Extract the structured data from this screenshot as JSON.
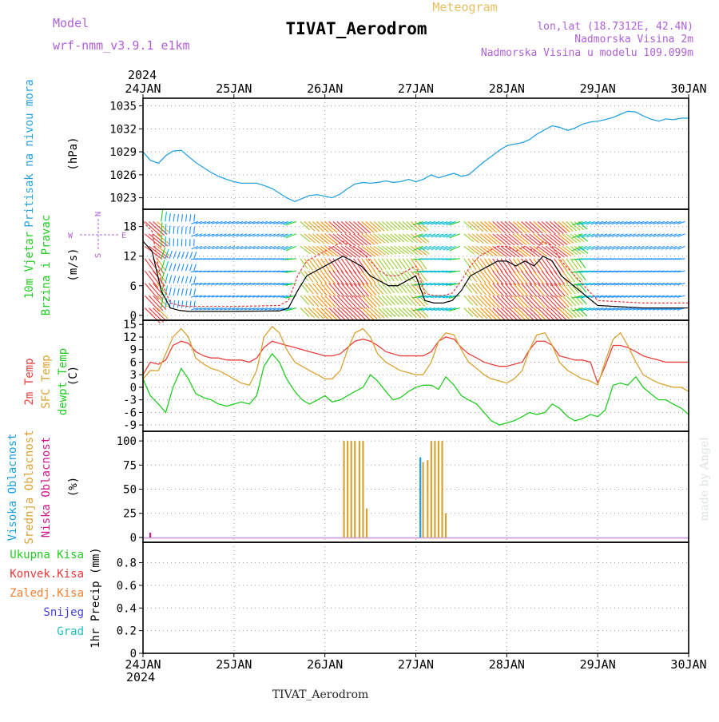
{
  "header": {
    "model_label": "Model",
    "model_name": "wrf-nmm_v3.9.1  e1km",
    "meteogram_label": "Meteogram",
    "station_title": "TIVAT_Aerodrom",
    "lonlat": "lon,lat (18.7312E, 42.4N)",
    "altitude": "Nadmorska Visina 2m",
    "model_altitude": "Nadmorska Visina u modelu 109.099m",
    "footer_station": "TIVAT_Aerodrom",
    "watermark": "made by Angel",
    "year_top": "2024",
    "year_bottom": "2024"
  },
  "colors": {
    "pressure": "#29a3e0",
    "temp2m": "#e8403c",
    "sfc_temp": "#daa233",
    "dewpoint": "#22cc22",
    "cloud_high": "#1aa0e0",
    "cloud_mid": "#daa233",
    "cloud_low": "#d01890",
    "model_text": "#b060d8",
    "meteogram_text": "#e8c060",
    "rain_total": "#22cc22",
    "rain_conv": "#e83838",
    "rain_freezing": "#f08030",
    "snow": "#4040e0",
    "hail": "#20c0c0",
    "wind_speed": "#000000",
    "wind_gust": "#e83838"
  },
  "chart_data": [
    {
      "type": "line",
      "id": "pressure",
      "ylabel": "(hPa)",
      "side_labels": [
        "Pritisak na nivou mora"
      ],
      "yticks": [
        1023,
        1026,
        1029,
        1032,
        1035
      ],
      "ylim": [
        1021.5,
        1036
      ],
      "x_days": [
        "24JAN",
        "25JAN",
        "26JAN",
        "27JAN",
        "28JAN",
        "29JAN",
        "30JAN"
      ],
      "series": [
        {
          "key": "pressure",
          "x": [
            0,
            0.08,
            0.17,
            0.25,
            0.33,
            0.42,
            0.5,
            0.58,
            0.67,
            0.75,
            0.83,
            0.92,
            1.0,
            1.08,
            1.17,
            1.25,
            1.33,
            1.42,
            1.5,
            1.58,
            1.67,
            1.75,
            1.83,
            1.92,
            2.0,
            2.08,
            2.17,
            2.25,
            2.33,
            2.42,
            2.5,
            2.58,
            2.67,
            2.75,
            2.83,
            2.92,
            3.0,
            3.08,
            3.17,
            3.25,
            3.33,
            3.42,
            3.5,
            3.58,
            3.67,
            3.75,
            3.83,
            3.92,
            4.0,
            4.08,
            4.17,
            4.25,
            4.33,
            4.42,
            4.5,
            4.58,
            4.67,
            4.75,
            4.83,
            4.92,
            5.0,
            5.08,
            5.17,
            5.25,
            5.33,
            5.42,
            5.5,
            5.58,
            5.67,
            5.75,
            5.83,
            5.92,
            6.0
          ],
          "y": [
            1029.0,
            1027.9,
            1027.5,
            1028.5,
            1029.1,
            1029.2,
            1028.4,
            1027.6,
            1026.9,
            1026.3,
            1025.8,
            1025.4,
            1025.1,
            1024.9,
            1024.9,
            1024.9,
            1024.6,
            1024.2,
            1023.6,
            1023.0,
            1022.5,
            1022.9,
            1023.3,
            1023.4,
            1023.2,
            1023.0,
            1023.5,
            1024.2,
            1024.8,
            1025.0,
            1024.9,
            1025.0,
            1025.2,
            1025.0,
            1025.1,
            1025.4,
            1025.1,
            1025.4,
            1026.0,
            1025.6,
            1025.9,
            1026.2,
            1025.8,
            1026.0,
            1026.9,
            1027.7,
            1028.4,
            1029.2,
            1029.8,
            1030.0,
            1030.2,
            1030.6,
            1031.3,
            1031.9,
            1032.4,
            1032.2,
            1031.8,
            1032.1,
            1032.6,
            1032.9,
            1033.0,
            1033.2,
            1033.5,
            1033.9,
            1034.3,
            1034.2,
            1033.7,
            1033.3,
            1033.0,
            1033.3,
            1033.2,
            1033.4,
            1033.4
          ]
        }
      ]
    },
    {
      "type": "line",
      "id": "wind",
      "ylabel": "(m/s)",
      "side_labels": [
        "10m Vjetar",
        "Brzina i Pravac"
      ],
      "compass": {
        "n": "N",
        "s": "S",
        "w": "W",
        "e": "E"
      },
      "yticks": [
        0,
        6,
        12,
        18
      ],
      "ylim": [
        -1,
        21.5
      ],
      "series": [
        {
          "key": "wind_speed",
          "x": [
            0,
            0.1,
            0.2,
            0.3,
            0.4,
            0.5,
            1.0,
            1.5,
            1.6,
            1.7,
            1.8,
            1.9,
            2.0,
            2.1,
            2.2,
            2.3,
            2.4,
            2.5,
            2.6,
            2.7,
            2.8,
            2.9,
            3.0,
            3.1,
            3.2,
            3.3,
            3.4,
            3.5,
            3.6,
            3.7,
            3.8,
            3.9,
            4.0,
            4.1,
            4.2,
            4.3,
            4.4,
            4.5,
            4.6,
            5.0,
            5.5,
            6.0
          ],
          "y": [
            15,
            13,
            5,
            1.5,
            1.0,
            0.8,
            0.8,
            0.9,
            1.5,
            5,
            8,
            9,
            10,
            11,
            12,
            11,
            10,
            8,
            7,
            6,
            6,
            7,
            8,
            3,
            2.5,
            2.5,
            3,
            5,
            8,
            9,
            10,
            11,
            11,
            10,
            11,
            10,
            12,
            11,
            8,
            2,
            1.5,
            1.5
          ]
        },
        {
          "key": "wind_gust",
          "x": [
            0,
            0.1,
            0.2,
            0.3,
            0.4,
            0.5,
            1.0,
            1.5,
            1.6,
            1.7,
            1.8,
            1.9,
            2.0,
            2.1,
            2.2,
            2.3,
            2.4,
            2.5,
            2.6,
            2.7,
            2.8,
            2.9,
            3.0,
            3.1,
            3.2,
            3.3,
            3.4,
            3.5,
            3.6,
            3.7,
            3.8,
            3.9,
            4.0,
            4.1,
            4.2,
            4.3,
            4.4,
            4.5,
            4.6,
            5.0,
            5.5,
            6.0
          ],
          "y": [
            19,
            17,
            7,
            2.5,
            2.0,
            1.8,
            1.8,
            2.0,
            3,
            8,
            11,
            12,
            13,
            14,
            15,
            14,
            13,
            11,
            9,
            8,
            8,
            9,
            10,
            4.5,
            4,
            4,
            4.5,
            7,
            10,
            12,
            13,
            14,
            14,
            13,
            14,
            13,
            15,
            14,
            11,
            3,
            2.5,
            2.5
          ]
        }
      ]
    },
    {
      "type": "line",
      "id": "temperature",
      "ylabel": "(C)",
      "side_labels": [
        "2m Temp",
        "SFC Temp",
        "dewpt Temp"
      ],
      "yticks": [
        -9,
        -6,
        -3,
        0,
        3,
        6,
        9,
        12,
        15
      ],
      "ylim": [
        -10.5,
        16
      ],
      "series": [
        {
          "key": "temp2m",
          "x": [
            0,
            0.08,
            0.17,
            0.25,
            0.33,
            0.42,
            0.5,
            0.58,
            0.67,
            0.75,
            0.83,
            0.92,
            1.0,
            1.08,
            1.17,
            1.25,
            1.33,
            1.42,
            1.5,
            1.58,
            1.67,
            1.75,
            1.83,
            1.92,
            2.0,
            2.08,
            2.17,
            2.25,
            2.33,
            2.42,
            2.5,
            2.58,
            2.67,
            2.75,
            2.83,
            2.92,
            3.0,
            3.08,
            3.17,
            3.25,
            3.33,
            3.42,
            3.5,
            3.58,
            3.67,
            3.75,
            3.83,
            3.92,
            4.0,
            4.08,
            4.17,
            4.25,
            4.33,
            4.42,
            4.5,
            4.58,
            4.67,
            4.75,
            4.83,
            4.92,
            5.0,
            5.08,
            5.17,
            5.25,
            5.33,
            5.42,
            5.5,
            5.58,
            5.67,
            5.75,
            5.83,
            5.92,
            6.0
          ],
          "y": [
            3.0,
            6.0,
            5.5,
            6.5,
            10.0,
            11.0,
            10.5,
            8.5,
            7.5,
            7.0,
            7.0,
            6.5,
            6.5,
            6.5,
            6.0,
            7.0,
            9.5,
            11.0,
            10.5,
            10.0,
            9.5,
            9.0,
            8.5,
            8.0,
            7.5,
            7.5,
            8.0,
            9.5,
            11.0,
            11.5,
            11.0,
            10.0,
            8.5,
            8.0,
            7.5,
            7.5,
            7.5,
            7.5,
            8.5,
            11.0,
            12.0,
            11.5,
            9.5,
            8.0,
            7.0,
            6.0,
            5.5,
            5.0,
            5.0,
            5.5,
            6.0,
            9.0,
            11.0,
            11.0,
            10.0,
            7.5,
            7.0,
            6.5,
            6.5,
            6.0,
            1.0,
            5.0,
            10.0,
            10.0,
            9.5,
            8.5,
            7.5,
            7.0,
            6.5,
            6.0,
            6.0,
            6.0,
            6.0
          ]
        },
        {
          "key": "sfc_temp",
          "x": [
            0,
            0.08,
            0.17,
            0.25,
            0.33,
            0.42,
            0.5,
            0.58,
            0.67,
            0.75,
            0.83,
            0.92,
            1.0,
            1.08,
            1.17,
            1.25,
            1.33,
            1.42,
            1.5,
            1.58,
            1.67,
            1.75,
            1.83,
            1.92,
            2.0,
            2.08,
            2.17,
            2.25,
            2.33,
            2.42,
            2.5,
            2.58,
            2.67,
            2.75,
            2.83,
            2.92,
            3.0,
            3.08,
            3.17,
            3.25,
            3.33,
            3.42,
            3.5,
            3.58,
            3.67,
            3.75,
            3.83,
            3.92,
            4.0,
            4.08,
            4.17,
            4.25,
            4.33,
            4.42,
            4.5,
            4.58,
            4.67,
            4.75,
            4.83,
            4.92,
            5.0,
            5.08,
            5.17,
            5.25,
            5.33,
            5.42,
            5.5,
            5.58,
            5.67,
            5.75,
            5.83,
            5.92,
            6.0
          ],
          "y": [
            2.0,
            4.0,
            4.0,
            8.0,
            12.0,
            14.0,
            12.0,
            7.0,
            5.5,
            4.5,
            4.0,
            3.0,
            2.0,
            1.0,
            0.5,
            4.0,
            12.0,
            14.5,
            13.0,
            9.0,
            6.0,
            5.0,
            4.0,
            3.0,
            2.0,
            2.0,
            4.0,
            9.0,
            13.0,
            14.0,
            12.0,
            8.0,
            6.0,
            5.0,
            4.0,
            3.5,
            3.0,
            3.0,
            6.0,
            11.0,
            13.0,
            12.5,
            9.0,
            6.0,
            4.5,
            3.0,
            2.0,
            1.5,
            1.0,
            2.0,
            4.0,
            9.0,
            12.5,
            13.0,
            10.0,
            6.0,
            4.0,
            3.0,
            2.0,
            1.5,
            0.5,
            6.0,
            11.5,
            13.0,
            10.0,
            6.0,
            3.0,
            2.0,
            1.0,
            0.5,
            0.0,
            0.0,
            -1.0
          ]
        },
        {
          "key": "dewpoint",
          "x": [
            0,
            0.08,
            0.17,
            0.25,
            0.33,
            0.42,
            0.5,
            0.58,
            0.67,
            0.75,
            0.83,
            0.92,
            1.0,
            1.08,
            1.17,
            1.25,
            1.33,
            1.42,
            1.5,
            1.58,
            1.67,
            1.75,
            1.83,
            1.92,
            2.0,
            2.08,
            2.17,
            2.25,
            2.33,
            2.42,
            2.5,
            2.58,
            2.67,
            2.75,
            2.83,
            2.92,
            3.0,
            3.08,
            3.17,
            3.25,
            3.33,
            3.42,
            3.5,
            3.58,
            3.67,
            3.75,
            3.83,
            3.92,
            4.0,
            4.08,
            4.17,
            4.25,
            4.33,
            4.42,
            4.5,
            4.58,
            4.67,
            4.75,
            4.83,
            4.92,
            5.0,
            5.08,
            5.17,
            5.25,
            5.33,
            5.42,
            5.5,
            5.58,
            5.67,
            5.75,
            5.83,
            5.92,
            6.0
          ],
          "y": [
            2.0,
            -2.0,
            -4.0,
            -6.0,
            0.0,
            4.5,
            2.0,
            -1.5,
            -2.5,
            -3.0,
            -4.0,
            -4.5,
            -4.0,
            -3.5,
            -4.0,
            -2.0,
            5.0,
            8.0,
            6.0,
            2.0,
            -1.0,
            -3.0,
            -4.0,
            -3.0,
            -2.0,
            -3.5,
            -3.0,
            -2.0,
            -1.0,
            0.0,
            3.0,
            1.5,
            -1.0,
            -3.0,
            -2.5,
            -1.0,
            0.0,
            0.5,
            0.5,
            -0.5,
            2.5,
            0.5,
            -2.0,
            -3.0,
            -4.0,
            -6.0,
            -8.0,
            -9.0,
            -8.5,
            -8.0,
            -7.0,
            -6.0,
            -6.5,
            -6.0,
            -4.0,
            -5.0,
            -7.0,
            -8.0,
            -7.5,
            -6.5,
            -7.0,
            -5.5,
            0.5,
            1.0,
            0.5,
            2.5,
            0.0,
            -1.5,
            -3.0,
            -3.0,
            -4.0,
            -5.0,
            -6.5
          ]
        }
      ]
    },
    {
      "type": "bar",
      "id": "clouds",
      "ylabel": "(%)",
      "side_labels": [
        "Visoka Oblacnost",
        "Srednja Oblacnost",
        "Niska Oblacnost"
      ],
      "yticks": [
        0,
        25,
        50,
        75,
        100
      ],
      "ylim": [
        -5,
        110
      ],
      "series": [
        {
          "key": "cloud_mid",
          "x": [
            2.21,
            2.25,
            2.29,
            2.33,
            2.38,
            2.42,
            2.46,
            3.08,
            3.13,
            3.17,
            3.21,
            3.25,
            3.29,
            3.33
          ],
          "y": [
            100,
            100,
            100,
            100,
            100,
            100,
            30,
            78,
            80,
            100,
            100,
            100,
            100,
            25
          ]
        },
        {
          "key": "cloud_high",
          "x": [
            3.05
          ],
          "y": [
            83
          ]
        },
        {
          "key": "cloud_low",
          "x": [
            0.08
          ],
          "y": [
            5
          ]
        }
      ]
    },
    {
      "type": "bar",
      "id": "precip",
      "ylabel": "1hr Precip (mm)",
      "side_labels": [
        "Ukupna Kisa",
        "Konvek.Kisa",
        "Zaledj.Kisa",
        "Snijeg",
        "Grad"
      ],
      "yticks": [
        0,
        0.2,
        0.4,
        0.6,
        0.8
      ],
      "ylim": [
        0,
        0.98
      ],
      "series": []
    }
  ]
}
